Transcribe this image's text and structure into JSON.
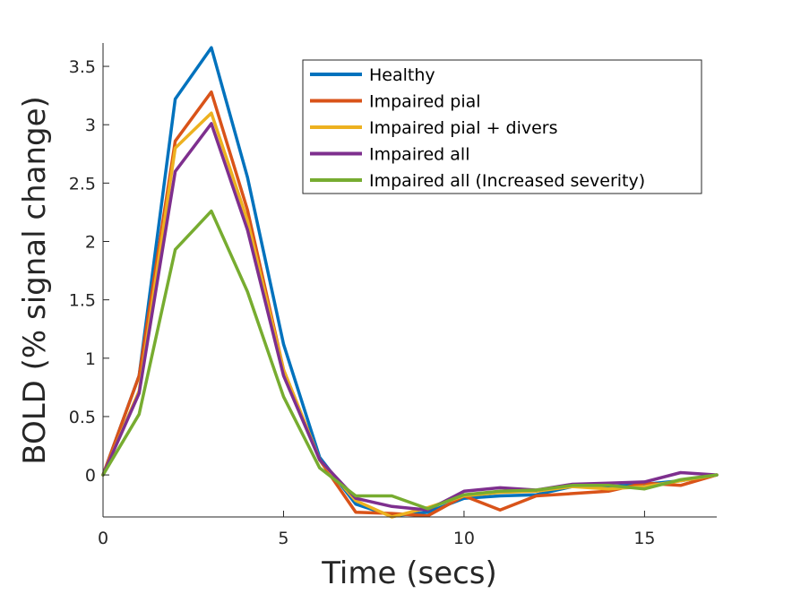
{
  "chart_data": {
    "type": "line",
    "title": "",
    "xlabel": "Time (secs)",
    "ylabel": "BOLD (% signal change)",
    "xlim": [
      0,
      17
    ],
    "ylim": [
      -0.36,
      3.7
    ],
    "xticks": [
      0,
      5,
      10,
      15
    ],
    "xtick_labels": [
      "0",
      "5",
      "10",
      "15"
    ],
    "yticks": [
      0,
      0.5,
      1,
      1.5,
      2,
      2.5,
      3,
      3.5
    ],
    "ytick_labels": [
      "0",
      "0.5",
      "1",
      "1.5",
      "2",
      "2.5",
      "3",
      "3.5"
    ],
    "grid": false,
    "legend_position": "top-right",
    "x": [
      0,
      1,
      2,
      3,
      4,
      5,
      6,
      7,
      8,
      9,
      10,
      11,
      12,
      13,
      14,
      15,
      16,
      17
    ],
    "series": [
      {
        "name": "Healthy",
        "color": "#0072BD",
        "values": [
          0,
          0.85,
          3.22,
          3.66,
          2.55,
          1.12,
          0.15,
          -0.25,
          -0.35,
          -0.32,
          -0.2,
          -0.18,
          -0.17,
          -0.1,
          -0.1,
          -0.08,
          -0.05,
          0
        ]
      },
      {
        "name": "Impaired pial",
        "color": "#D95319",
        "values": [
          0,
          0.85,
          2.86,
          3.28,
          2.27,
          0.9,
          0.13,
          -0.32,
          -0.33,
          -0.35,
          -0.18,
          -0.3,
          -0.18,
          -0.16,
          -0.14,
          -0.07,
          -0.09,
          0
        ]
      },
      {
        "name": "Impaired pial + divers",
        "color": "#EDB120",
        "values": [
          0,
          0.72,
          2.8,
          3.1,
          2.18,
          0.9,
          0.13,
          -0.22,
          -0.36,
          -0.28,
          -0.18,
          -0.15,
          -0.14,
          -0.1,
          -0.12,
          -0.1,
          -0.05,
          0
        ]
      },
      {
        "name": "Impaired all",
        "color": "#7E2F8E",
        "values": [
          0,
          0.7,
          2.6,
          3.01,
          2.1,
          0.85,
          0.13,
          -0.2,
          -0.27,
          -0.3,
          -0.14,
          -0.11,
          -0.13,
          -0.08,
          -0.07,
          -0.06,
          0.02,
          0
        ]
      },
      {
        "name": "Impaired all (Increased severity)",
        "color": "#77AC30",
        "values": [
          0,
          0.52,
          1.93,
          2.26,
          1.57,
          0.67,
          0.06,
          -0.18,
          -0.18,
          -0.29,
          -0.17,
          -0.14,
          -0.13,
          -0.09,
          -0.09,
          -0.12,
          -0.04,
          0
        ]
      }
    ]
  }
}
